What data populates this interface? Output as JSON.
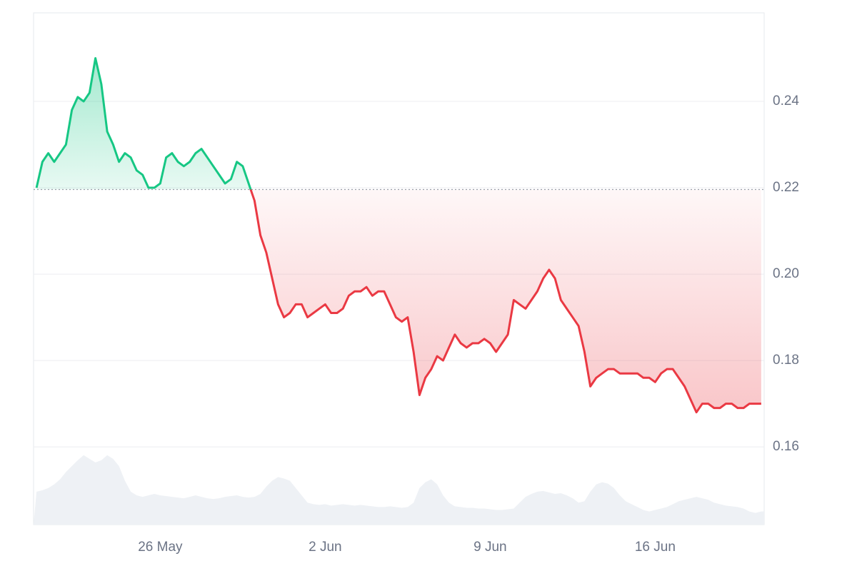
{
  "chart_data": {
    "type": "line",
    "categories": [
      null,
      null,
      null,
      null,
      null,
      null,
      null,
      null,
      null,
      null,
      null,
      null,
      null,
      null,
      null,
      null,
      null,
      null,
      null,
      null,
      null,
      "26 May",
      null,
      null,
      null,
      null,
      null,
      null,
      null,
      null,
      null,
      null,
      null,
      null,
      null,
      null,
      null,
      null,
      null,
      null,
      null,
      null,
      null,
      null,
      null,
      null,
      null,
      null,
      null,
      "2 Jun",
      null,
      null,
      null,
      null,
      null,
      null,
      null,
      null,
      null,
      null,
      null,
      null,
      null,
      null,
      null,
      null,
      null,
      null,
      null,
      null,
      null,
      null,
      null,
      null,
      null,
      null,
      null,
      "9 Jun",
      null,
      null,
      null,
      null,
      null,
      null,
      null,
      null,
      null,
      null,
      null,
      null,
      null,
      null,
      null,
      null,
      null,
      null,
      null,
      null,
      null,
      null,
      null,
      null,
      null,
      null,
      null,
      "16 Jun",
      null,
      null,
      null,
      null,
      null,
      null,
      null,
      null,
      null,
      null,
      null,
      null,
      null,
      null,
      null,
      null,
      null,
      null
    ],
    "series": [
      {
        "values": [
          0.22,
          0.226,
          0.228,
          0.226,
          0.228,
          0.23,
          0.238,
          0.241,
          0.24,
          0.242,
          0.25,
          0.244,
          0.233,
          0.23,
          0.226,
          0.228,
          0.227,
          0.224,
          0.223,
          0.22,
          0.22,
          0.221,
          0.227,
          0.228,
          0.226,
          0.225,
          0.226,
          0.228,
          0.229,
          0.227,
          0.225,
          0.223,
          0.221,
          0.222,
          0.226,
          0.225,
          0.221,
          0.217,
          0.209,
          0.205,
          0.199,
          0.193,
          0.19,
          0.191,
          0.193,
          0.193,
          0.19,
          0.191,
          0.192,
          0.193,
          0.191,
          0.191,
          0.192,
          0.195,
          0.196,
          0.196,
          0.197,
          0.195,
          0.196,
          0.196,
          0.193,
          0.19,
          0.189,
          0.19,
          0.182,
          0.172,
          0.176,
          0.178,
          0.181,
          0.18,
          0.183,
          0.186,
          0.184,
          0.183,
          0.184,
          0.184,
          0.185,
          0.184,
          0.182,
          0.184,
          0.186,
          0.194,
          0.193,
          0.192,
          0.194,
          0.196,
          0.199,
          0.201,
          0.199,
          0.194,
          0.192,
          0.19,
          0.188,
          0.182,
          0.174,
          0.176,
          0.177,
          0.178,
          0.178,
          0.177,
          0.177,
          0.177,
          0.177,
          0.176,
          0.176,
          0.175,
          0.177,
          0.178,
          0.178,
          0.176,
          0.174,
          0.171,
          0.168,
          0.17,
          0.17,
          0.169,
          0.169,
          0.17,
          0.17,
          0.169,
          0.169,
          0.17,
          0.17,
          0.17
        ],
        "up_color": "#16c784",
        "down_color": "#ea3943"
      },
      {
        "values": [
          45,
          47,
          50,
          55,
          62,
          72,
          80,
          88,
          95,
          90,
          85,
          88,
          95,
          90,
          80,
          60,
          45,
          40,
          38,
          40,
          42,
          40,
          39,
          38,
          37,
          36,
          38,
          40,
          38,
          36,
          35,
          36,
          38,
          39,
          40,
          38,
          37,
          38,
          42,
          52,
          60,
          65,
          63,
          60,
          50,
          40,
          30,
          28,
          27,
          28,
          26,
          27,
          28,
          27,
          26,
          27,
          26,
          25,
          24,
          24,
          25,
          24,
          23,
          24,
          30,
          50,
          58,
          62,
          55,
          40,
          30,
          25,
          24,
          23,
          23,
          22,
          22,
          21,
          20,
          20,
          21,
          22,
          30,
          38,
          42,
          45,
          46,
          44,
          42,
          43,
          40,
          36,
          30,
          32,
          45,
          55,
          58,
          56,
          50,
          40,
          32,
          28,
          24,
          20,
          18,
          20,
          22,
          24,
          28,
          32,
          34,
          36,
          38,
          36,
          34,
          30,
          28,
          26,
          25,
          24,
          22,
          18,
          16,
          18
        ],
        "axis": "y2",
        "color": "#eef1f5"
      }
    ],
    "baseline": 0.2196,
    "ylim": [
      0.142,
      0.2605
    ],
    "yticks": [
      0.16,
      0.18,
      {
        "value": 0.2,
        "label": "0.20"
      },
      0.22,
      0.24
    ],
    "y2lim": [
      0,
      700
    ],
    "grid": true
  }
}
